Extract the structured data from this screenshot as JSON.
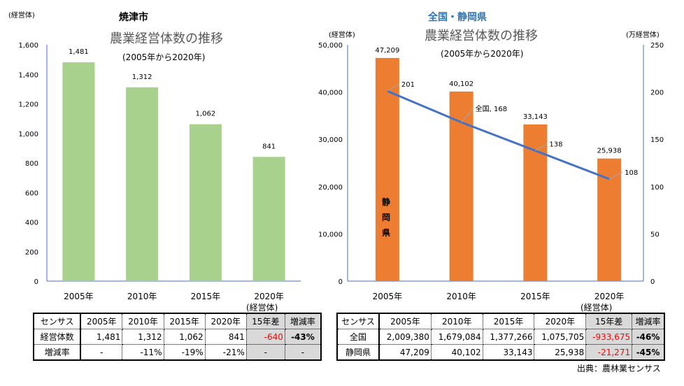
{
  "colors": {
    "left_bar": "#a9d18e",
    "right_bar": "#ed7d31",
    "line": "#4472c4",
    "title_blue": "#2e75b6",
    "negative": "#ff0000"
  },
  "chart_data": [
    {
      "type": "bar",
      "title": "焼津市",
      "subtitle": "農業経営体数の推移",
      "period": "(2005年から2020年)",
      "ylabel": "(経営体)",
      "categories": [
        "2005年",
        "2010年",
        "2015年",
        "2020年"
      ],
      "values": [
        1481,
        1312,
        1062,
        841
      ],
      "data_labels": [
        "1,481",
        "1,312",
        "1,062",
        "841"
      ],
      "ylim": [
        0,
        1600
      ],
      "yticks": [
        "0",
        "200",
        "400",
        "600",
        "800",
        "1,000",
        "1,200",
        "1,400",
        "1,600"
      ],
      "grid": false
    },
    {
      "type": "bar+line",
      "title": "全国・静岡県",
      "subtitle": "農業経営体数の推移",
      "period": "(2005年から2020年)",
      "ylabel": "(経営体)",
      "y2label": "(万経営体)",
      "categories": [
        "2005年",
        "2010年",
        "2015年",
        "2020年"
      ],
      "series": [
        {
          "name": "静岡県",
          "type": "bar",
          "axis": "left",
          "values": [
            47209,
            40102,
            33143,
            25938
          ],
          "data_labels": [
            "47,209",
            "40,102",
            "33,143",
            "25,938"
          ]
        },
        {
          "name": "全国",
          "type": "line",
          "axis": "right",
          "values": [
            201,
            168,
            138,
            108
          ],
          "data_labels": [
            "201",
            "全国, 168",
            "138",
            "108"
          ]
        }
      ],
      "ylim": [
        0,
        50000
      ],
      "yticks": [
        "0",
        "10,000",
        "20,000",
        "30,000",
        "40,000",
        "50,000"
      ],
      "y2lim": [
        0,
        250
      ],
      "y2ticks": [
        "0",
        "50",
        "100",
        "150",
        "200",
        "250"
      ],
      "grid": false
    }
  ],
  "left_table": {
    "unit": "(経営体)",
    "header": [
      "センサス",
      "2005年",
      "2010年",
      "2015年",
      "2020年",
      "15年差",
      "増減率"
    ],
    "rows": [
      [
        "経営体数",
        "1,481",
        "1,312",
        "1,062",
        "841",
        "-640",
        "-43%"
      ],
      [
        "増減率",
        "-",
        "-11%",
        "-19%",
        "-21%",
        "-",
        "-"
      ]
    ]
  },
  "right_table": {
    "unit": "(経営体)",
    "header": [
      "センサス",
      "2005年",
      "2010年",
      "2015年",
      "2020年",
      "15年差",
      "増減率"
    ],
    "rows": [
      [
        "全国",
        "2,009,380",
        "1,679,084",
        "1,377,266",
        "1,075,705",
        "-933,675",
        "-46%"
      ],
      [
        "静岡県",
        "47,209",
        "40,102",
        "33,143",
        "25,938",
        "-21,271",
        "-45%"
      ]
    ]
  },
  "source": "出典：農林業センサス"
}
